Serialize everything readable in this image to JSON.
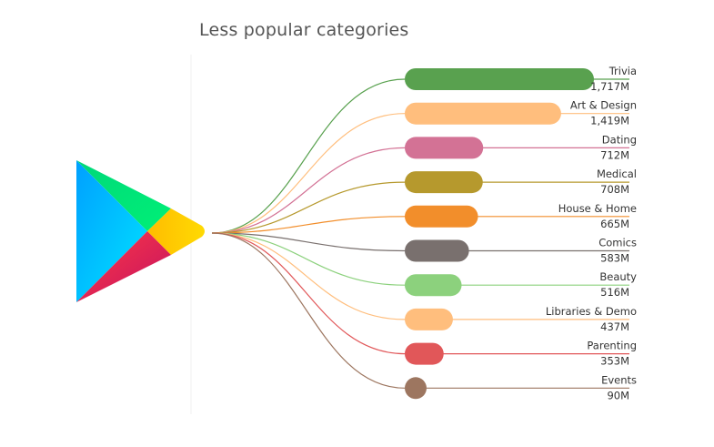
{
  "chart_data": {
    "type": "bar",
    "title": "Less popular categories",
    "xlabel": "",
    "ylabel": "",
    "categories": [
      "Trivia",
      "Art & Design",
      "Dating",
      "Medical",
      "House & Home",
      "Comics",
      "Beauty",
      "Libraries & Demo",
      "Parenting",
      "Events"
    ],
    "values": [
      1717,
      1419,
      712,
      708,
      665,
      583,
      516,
      437,
      353,
      90
    ],
    "value_labels": [
      "1,717M",
      "1,419M",
      "712M",
      "708M",
      "665M",
      "583M",
      "516M",
      "437M",
      "353M",
      "90M"
    ],
    "colors": [
      "#59a14f",
      "#ffbe7d",
      "#d37295",
      "#b6992d",
      "#f28e2b",
      "#79706e",
      "#8cd17d",
      "#ffbe7d",
      "#e15759",
      "#9d7660"
    ],
    "grid": false,
    "legend": "none"
  },
  "logo": {
    "name": "google-play-logo-icon",
    "colors": [
      "#00d7fe",
      "#00f076",
      "#ffd500",
      "#f7325f"
    ]
  }
}
